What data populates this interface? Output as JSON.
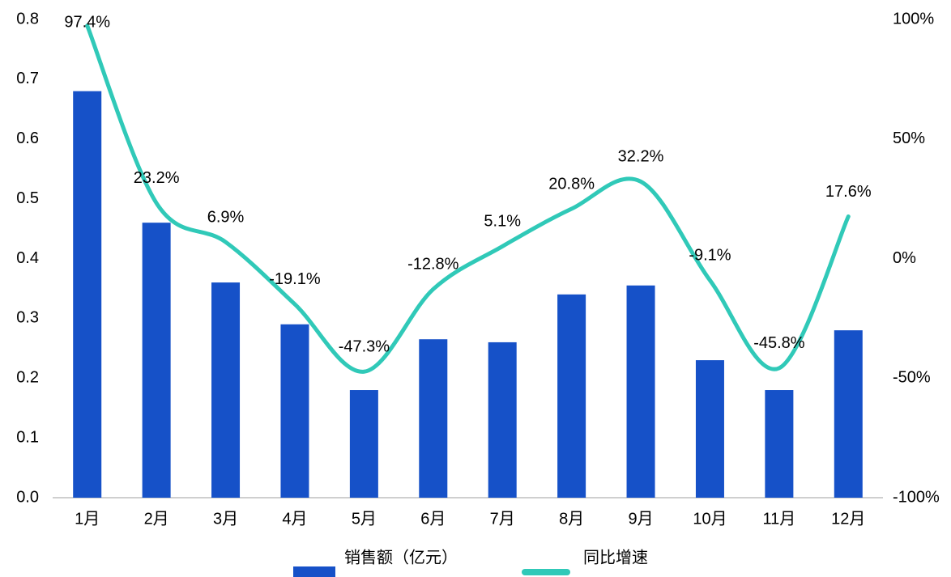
{
  "chart_data": {
    "type": "bar_line",
    "categories": [
      "1月",
      "2月",
      "3月",
      "4月",
      "5月",
      "6月",
      "7月",
      "8月",
      "9月",
      "10月",
      "11月",
      "12月"
    ],
    "series": [
      {
        "name": "销售额（亿元）",
        "type": "bar",
        "color": "#1651c8",
        "values": [
          0.68,
          0.46,
          0.36,
          0.29,
          0.18,
          0.265,
          0.26,
          0.34,
          0.355,
          0.23,
          0.18,
          0.28
        ]
      },
      {
        "name": "同比增速",
        "type": "line",
        "axis": "y2",
        "color": "#30c9b8",
        "values": [
          97.4,
          23.2,
          6.9,
          -19.1,
          -47.3,
          -12.8,
          5.1,
          20.8,
          32.2,
          -9.1,
          -45.8,
          17.6
        ],
        "value_labels": [
          "97.4%",
          "23.2%",
          "6.9%",
          "-19.1%",
          "-47.3%",
          "-12.8%",
          "5.1%",
          "20.8%",
          "32.2%",
          "-9.1%",
          "-45.8%",
          "17.6%"
        ]
      }
    ],
    "ylim": [
      0,
      0.8
    ],
    "yticks": [
      {
        "value": 0,
        "label": "0.0"
      },
      0.1,
      0.2,
      0.3,
      0.4,
      0.5,
      0.6,
      0.7,
      0.8
    ],
    "y2lim": [
      -100,
      100
    ],
    "y2ticks": [
      {
        "value": -100,
        "label": "-100%"
      },
      {
        "value": -50,
        "label": "-50%"
      },
      {
        "value": 0,
        "label": "0%"
      },
      {
        "value": 50,
        "label": "50%"
      },
      {
        "value": 100,
        "label": "100%"
      }
    ],
    "grid": false,
    "legend": "bottom"
  }
}
